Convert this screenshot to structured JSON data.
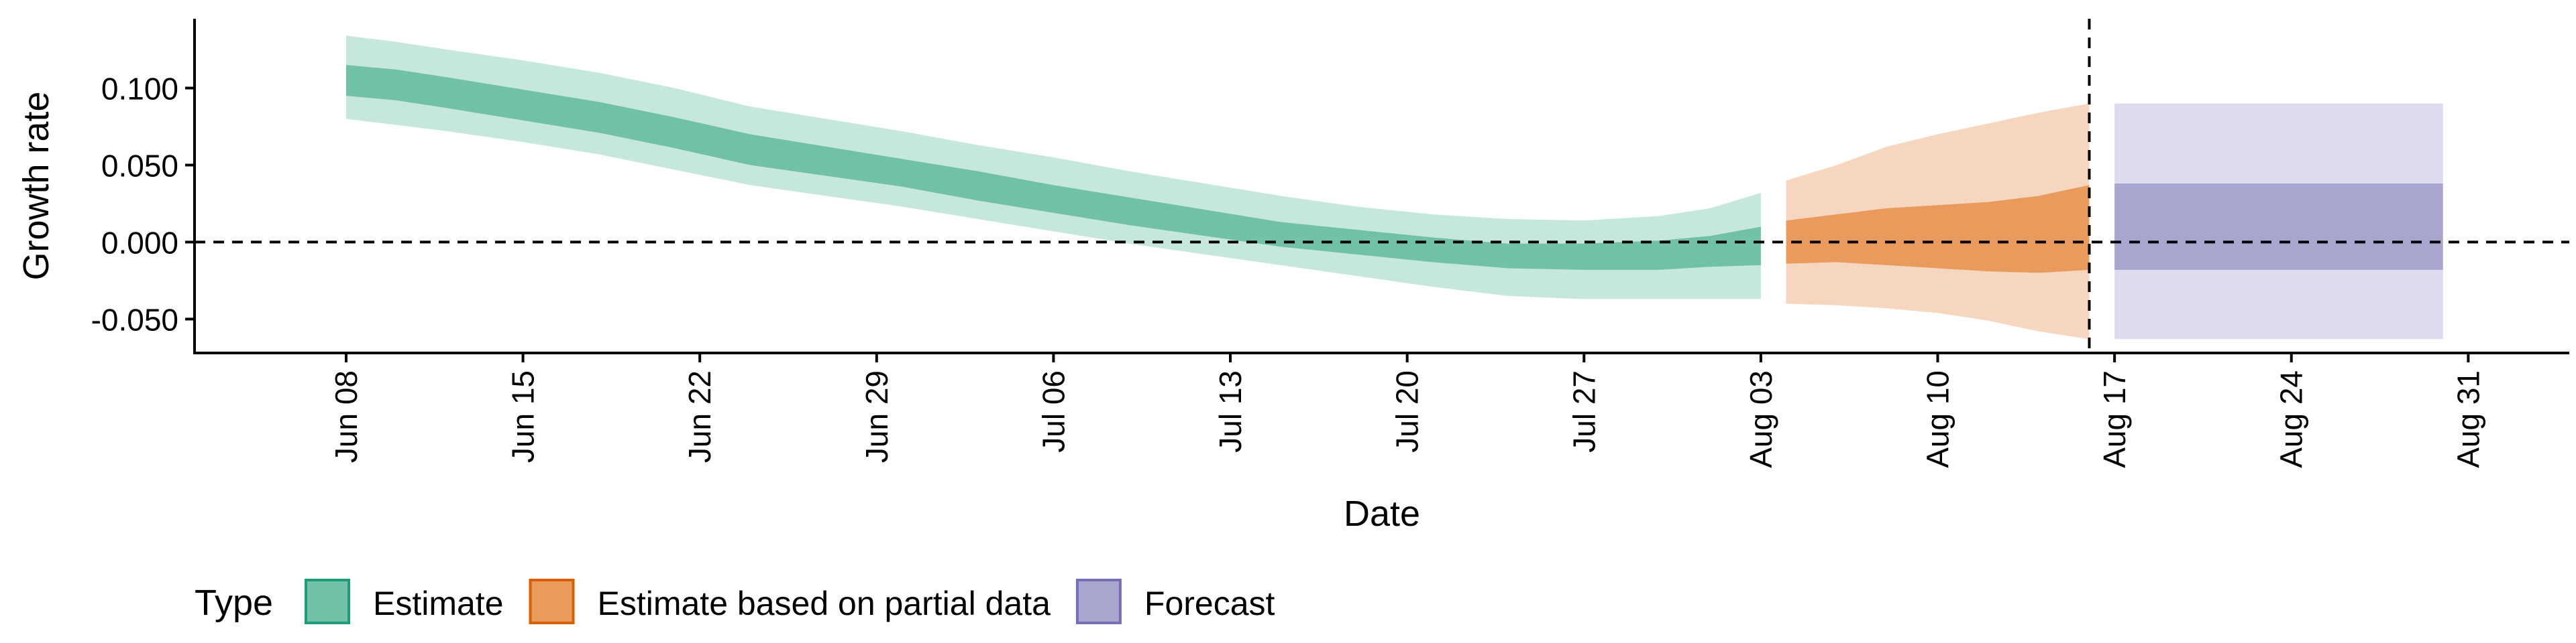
{
  "chart_data": {
    "type": "area",
    "xlabel": "Date",
    "ylabel": "Growth rate",
    "x_range": [
      "2020-06-02",
      "2020-09-04"
    ],
    "ylim": [
      -0.072,
      0.145
    ],
    "y_ticks": [
      {
        "value": 0.1,
        "label": "0.100"
      },
      {
        "value": 0.05,
        "label": "0.050"
      },
      {
        "value": 0.0,
        "label": "0.000"
      },
      {
        "value": -0.05,
        "label": "-0.050"
      }
    ],
    "x_ticks": [
      {
        "date": "2020-06-08",
        "label": "Jun 08"
      },
      {
        "date": "2020-06-15",
        "label": "Jun 15"
      },
      {
        "date": "2020-06-22",
        "label": "Jun 22"
      },
      {
        "date": "2020-06-29",
        "label": "Jun 29"
      },
      {
        "date": "2020-07-06",
        "label": "Jul 06"
      },
      {
        "date": "2020-07-13",
        "label": "Jul 13"
      },
      {
        "date": "2020-07-20",
        "label": "Jul 20"
      },
      {
        "date": "2020-07-27",
        "label": "Jul 27"
      },
      {
        "date": "2020-08-03",
        "label": "Aug 03"
      },
      {
        "date": "2020-08-10",
        "label": "Aug 10"
      },
      {
        "date": "2020-08-17",
        "label": "Aug 17"
      },
      {
        "date": "2020-08-24",
        "label": "Aug 24"
      },
      {
        "date": "2020-08-31",
        "label": "Aug 31"
      }
    ],
    "hline_y": 0,
    "vline_date": "2020-08-16",
    "grid": false,
    "legend": {
      "title": "Type",
      "position": "bottom-left",
      "entries": [
        {
          "label": "Estimate",
          "fill": "#70c1a6",
          "stroke": "#1b9e77"
        },
        {
          "label": "Estimate based on partial data",
          "fill": "#e99a5d",
          "stroke": "#d95f02"
        },
        {
          "label": "Forecast",
          "fill": "#a8a6cf",
          "stroke": "#7570b3"
        }
      ]
    },
    "series": [
      {
        "name": "Estimate",
        "outer_fill": "#c6e7dc",
        "inner_fill": "#70c1a6",
        "points": [
          {
            "x": "2020-06-08",
            "outer": [
              0.08,
              0.134
            ],
            "inner": [
              0.095,
              0.115
            ]
          },
          {
            "x": "2020-06-10",
            "outer": [
              0.076,
              0.13
            ],
            "inner": [
              0.092,
              0.112
            ]
          },
          {
            "x": "2020-06-12",
            "outer": [
              0.072,
              0.125
            ],
            "inner": [
              0.087,
              0.107
            ]
          },
          {
            "x": "2020-06-15",
            "outer": [
              0.065,
              0.118
            ],
            "inner": [
              0.079,
              0.099
            ]
          },
          {
            "x": "2020-06-18",
            "outer": [
              0.057,
              0.11
            ],
            "inner": [
              0.071,
              0.091
            ]
          },
          {
            "x": "2020-06-21",
            "outer": [
              0.047,
              0.1
            ],
            "inner": [
              0.061,
              0.081
            ]
          },
          {
            "x": "2020-06-24",
            "outer": [
              0.037,
              0.088
            ],
            "inner": [
              0.05,
              0.07
            ]
          },
          {
            "x": "2020-06-27",
            "outer": [
              0.03,
              0.08
            ],
            "inner": [
              0.043,
              0.062
            ]
          },
          {
            "x": "2020-06-30",
            "outer": [
              0.023,
              0.072
            ],
            "inner": [
              0.036,
              0.054
            ]
          },
          {
            "x": "2020-07-03",
            "outer": [
              0.015,
              0.063
            ],
            "inner": [
              0.027,
              0.046
            ]
          },
          {
            "x": "2020-07-06",
            "outer": [
              0.007,
              0.055
            ],
            "inner": [
              0.019,
              0.037
            ]
          },
          {
            "x": "2020-07-09",
            "outer": [
              -0.001,
              0.046
            ],
            "inner": [
              0.011,
              0.029
            ]
          },
          {
            "x": "2020-07-12",
            "outer": [
              -0.008,
              0.038
            ],
            "inner": [
              0.004,
              0.021
            ]
          },
          {
            "x": "2020-07-15",
            "outer": [
              -0.015,
              0.03
            ],
            "inner": [
              -0.003,
              0.013
            ]
          },
          {
            "x": "2020-07-18",
            "outer": [
              -0.022,
              0.023
            ],
            "inner": [
              -0.008,
              0.008
            ]
          },
          {
            "x": "2020-07-21",
            "outer": [
              -0.029,
              0.018
            ],
            "inner": [
              -0.013,
              0.003
            ]
          },
          {
            "x": "2020-07-24",
            "outer": [
              -0.035,
              0.015
            ],
            "inner": [
              -0.017,
              -0.001
            ]
          },
          {
            "x": "2020-07-27",
            "outer": [
              -0.037,
              0.014
            ],
            "inner": [
              -0.018,
              -0.001
            ]
          },
          {
            "x": "2020-07-30",
            "outer": [
              -0.037,
              0.017
            ],
            "inner": [
              -0.018,
              0.001
            ]
          },
          {
            "x": "2020-08-01",
            "outer": [
              -0.037,
              0.022
            ],
            "inner": [
              -0.016,
              0.004
            ]
          },
          {
            "x": "2020-08-03",
            "outer": [
              -0.037,
              0.032
            ],
            "inner": [
              -0.015,
              0.01
            ]
          }
        ]
      },
      {
        "name": "Estimate based on partial data",
        "outer_fill": "#f6d6bf",
        "inner_fill": "#e99a5d",
        "points": [
          {
            "x": "2020-08-04",
            "outer": [
              -0.04,
              0.04
            ],
            "inner": [
              -0.014,
              0.014
            ]
          },
          {
            "x": "2020-08-06",
            "outer": [
              -0.041,
              0.05
            ],
            "inner": [
              -0.013,
              0.018
            ]
          },
          {
            "x": "2020-08-08",
            "outer": [
              -0.043,
              0.062
            ],
            "inner": [
              -0.015,
              0.022
            ]
          },
          {
            "x": "2020-08-10",
            "outer": [
              -0.046,
              0.07
            ],
            "inner": [
              -0.017,
              0.024
            ]
          },
          {
            "x": "2020-08-12",
            "outer": [
              -0.051,
              0.077
            ],
            "inner": [
              -0.019,
              0.026
            ]
          },
          {
            "x": "2020-08-14",
            "outer": [
              -0.058,
              0.084
            ],
            "inner": [
              -0.02,
              0.03
            ]
          },
          {
            "x": "2020-08-16",
            "outer": [
              -0.063,
              0.09
            ],
            "inner": [
              -0.018,
              0.037
            ]
          }
        ]
      },
      {
        "name": "Forecast",
        "outer_fill": "#dddcee",
        "inner_fill": "#a8a6cf",
        "points": [
          {
            "x": "2020-08-17",
            "outer": [
              -0.063,
              0.09
            ],
            "inner": [
              -0.018,
              0.038
            ]
          },
          {
            "x": "2020-08-30",
            "outer": [
              -0.063,
              0.09
            ],
            "inner": [
              -0.018,
              0.038
            ]
          }
        ]
      }
    ]
  }
}
